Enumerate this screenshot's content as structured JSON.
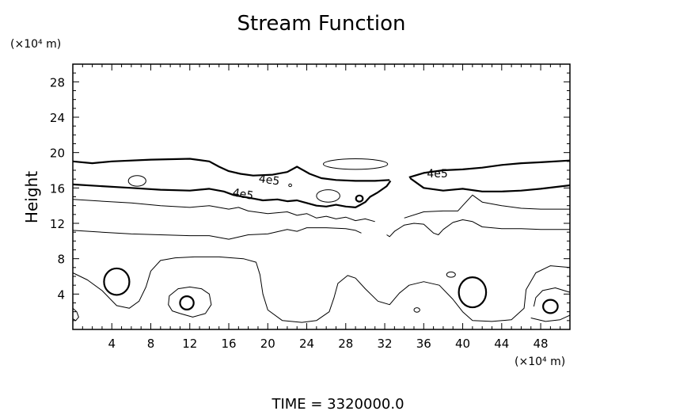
{
  "chart_data": {
    "type": "contour",
    "title": "Stream Function",
    "ylabel": "Height",
    "y_unit_label": "(×10⁴ m)",
    "x_unit_label": "(×10⁴ m)",
    "xlim": [
      0,
      51
    ],
    "ylim": [
      0,
      30
    ],
    "x_ticks": [
      4,
      8,
      12,
      16,
      20,
      24,
      28,
      32,
      36,
      40,
      44,
      48
    ],
    "y_ticks": [
      4,
      8,
      12,
      16,
      20,
      24,
      28
    ],
    "contour_labels": [
      "4e5",
      "4e5",
      "4e5"
    ],
    "footer": "TIME  =  3320000.0",
    "contours": [
      {
        "name": "upper-thick",
        "style": "thick",
        "points": [
          [
            0,
            19.0
          ],
          [
            2,
            18.8
          ],
          [
            4,
            19.0
          ],
          [
            8,
            19.2
          ],
          [
            12,
            19.3
          ],
          [
            14,
            19.0
          ],
          [
            15,
            18.4
          ],
          [
            16,
            17.9
          ],
          [
            17.2,
            17.6
          ],
          [
            18.5,
            17.4
          ],
          [
            20.5,
            17.5
          ],
          [
            22,
            17.8
          ],
          [
            23,
            18.4
          ],
          [
            24.3,
            17.6
          ],
          [
            25.5,
            17.1
          ],
          [
            27,
            16.9
          ],
          [
            29,
            16.8
          ],
          [
            31,
            16.8
          ],
          [
            32.5,
            16.9
          ]
        ]
      },
      {
        "name": "upper-thick-right",
        "style": "thick",
        "points": [
          [
            34.5,
            17.2
          ],
          [
            36,
            17.7
          ],
          [
            38,
            18.0
          ],
          [
            40,
            18.1
          ],
          [
            42,
            18.3
          ],
          [
            44,
            18.6
          ],
          [
            46,
            18.8
          ],
          [
            48,
            18.9
          ],
          [
            51,
            19.1
          ]
        ]
      },
      {
        "name": "middle-thick",
        "style": "thick",
        "points": [
          [
            0,
            16.4
          ],
          [
            3,
            16.2
          ],
          [
            6,
            16.0
          ],
          [
            9,
            15.8
          ],
          [
            12,
            15.7
          ],
          [
            14,
            15.9
          ],
          [
            15.5,
            15.6
          ],
          [
            16.5,
            15.2
          ],
          [
            17.5,
            15.0
          ],
          [
            18.5,
            14.8
          ],
          [
            19.5,
            14.6
          ],
          [
            21,
            14.7
          ],
          [
            22,
            14.5
          ],
          [
            23,
            14.6
          ],
          [
            25,
            14.0
          ],
          [
            26,
            13.9
          ],
          [
            27,
            14.1
          ],
          [
            28,
            13.9
          ],
          [
            29,
            13.8
          ],
          [
            29.5,
            14.1
          ],
          [
            30,
            14.4
          ],
          [
            30.5,
            15.0
          ],
          [
            31.3,
            15.5
          ],
          [
            32.2,
            16.2
          ],
          [
            32.6,
            16.8
          ]
        ]
      },
      {
        "name": "middle-thick-right",
        "style": "thick",
        "points": [
          [
            34.6,
            17.1
          ],
          [
            36,
            16.0
          ],
          [
            38,
            15.7
          ],
          [
            40,
            15.9
          ],
          [
            42,
            15.6
          ],
          [
            44,
            15.6
          ],
          [
            46,
            15.7
          ],
          [
            48,
            15.9
          ],
          [
            51,
            16.3
          ]
        ]
      },
      {
        "name": "thin-15",
        "style": "thin",
        "points": [
          [
            0,
            14.7
          ],
          [
            3,
            14.5
          ],
          [
            6,
            14.3
          ],
          [
            9,
            14.0
          ],
          [
            12,
            13.8
          ],
          [
            14,
            14.0
          ],
          [
            16,
            13.6
          ],
          [
            17,
            13.8
          ],
          [
            18,
            13.4
          ],
          [
            20,
            13.1
          ],
          [
            22,
            13.3
          ],
          [
            23,
            12.9
          ],
          [
            24,
            13.1
          ],
          [
            25,
            12.6
          ],
          [
            26,
            12.8
          ],
          [
            27,
            12.5
          ],
          [
            28,
            12.7
          ],
          [
            29,
            12.3
          ],
          [
            30,
            12.5
          ],
          [
            31,
            12.2
          ]
        ]
      },
      {
        "name": "thin-15-right",
        "style": "thin",
        "points": [
          [
            34,
            12.6
          ],
          [
            36,
            13.3
          ],
          [
            38,
            13.4
          ],
          [
            39.5,
            13.4
          ],
          [
            40,
            14.0
          ],
          [
            41,
            15.2
          ],
          [
            42,
            14.4
          ],
          [
            44,
            14.0
          ],
          [
            46,
            13.7
          ],
          [
            48,
            13.6
          ],
          [
            51,
            13.6
          ]
        ]
      },
      {
        "name": "thin-11",
        "style": "thin",
        "points": [
          [
            0,
            11.2
          ],
          [
            3,
            11.0
          ],
          [
            6,
            10.8
          ],
          [
            9,
            10.7
          ],
          [
            12,
            10.6
          ],
          [
            14,
            10.6
          ],
          [
            16,
            10.2
          ],
          [
            18,
            10.7
          ],
          [
            20,
            10.8
          ],
          [
            22,
            11.3
          ],
          [
            23,
            11.1
          ],
          [
            24,
            11.5
          ],
          [
            26,
            11.5
          ],
          [
            28,
            11.4
          ],
          [
            29,
            11.2
          ],
          [
            29.6,
            10.9
          ]
        ]
      },
      {
        "name": "thin-11-right",
        "style": "thin",
        "points": [
          [
            32.2,
            10.7
          ],
          [
            32.5,
            10.5
          ],
          [
            33,
            11.1
          ],
          [
            34,
            11.8
          ],
          [
            35,
            12.0
          ],
          [
            36,
            11.9
          ],
          [
            37,
            10.9
          ],
          [
            37.5,
            10.7
          ],
          [
            38,
            11.3
          ],
          [
            39,
            12.1
          ],
          [
            40,
            12.4
          ],
          [
            41,
            12.2
          ],
          [
            42,
            11.6
          ],
          [
            44,
            11.4
          ],
          [
            46,
            11.4
          ],
          [
            48,
            11.3
          ],
          [
            51,
            11.3
          ]
        ]
      },
      {
        "name": "wave-thin",
        "style": "thin",
        "points": [
          [
            0,
            6.4
          ],
          [
            1.5,
            5.6
          ],
          [
            3,
            4.4
          ],
          [
            4.5,
            2.7
          ],
          [
            5.8,
            2.4
          ],
          [
            6.8,
            3.2
          ],
          [
            7.5,
            4.8
          ],
          [
            8,
            6.6
          ],
          [
            9,
            7.8
          ],
          [
            10.5,
            8.1
          ],
          [
            12.5,
            8.2
          ],
          [
            15,
            8.2
          ],
          [
            17.5,
            8.0
          ],
          [
            18.8,
            7.6
          ],
          [
            19.2,
            6.2
          ],
          [
            19.5,
            4.0
          ],
          [
            20,
            2.2
          ],
          [
            21.5,
            1.0
          ],
          [
            23.5,
            0.8
          ],
          [
            25,
            1.0
          ],
          [
            26.3,
            2.0
          ],
          [
            26.8,
            3.6
          ],
          [
            27.2,
            5.2
          ],
          [
            28.2,
            6.1
          ],
          [
            29,
            5.8
          ],
          [
            30,
            4.6
          ],
          [
            31.3,
            3.2
          ],
          [
            32.5,
            2.8
          ],
          [
            33.5,
            4.1
          ],
          [
            34.5,
            5.0
          ],
          [
            36,
            5.4
          ],
          [
            37.6,
            5.0
          ],
          [
            39,
            3.4
          ],
          [
            40,
            2.0
          ],
          [
            41,
            1.0
          ],
          [
            43,
            0.9
          ],
          [
            45,
            1.1
          ],
          [
            46.3,
            2.4
          ],
          [
            46.5,
            4.5
          ],
          [
            47.5,
            6.4
          ],
          [
            49,
            7.2
          ],
          [
            51,
            7.0
          ]
        ]
      },
      {
        "name": "lower-loop-1",
        "style": "thin",
        "points": [
          [
            11,
            1.8
          ],
          [
            12.3,
            1.4
          ],
          [
            13.6,
            1.8
          ],
          [
            14.2,
            2.8
          ],
          [
            14,
            4.0
          ],
          [
            13.2,
            4.6
          ],
          [
            12,
            4.8
          ],
          [
            10.8,
            4.6
          ],
          [
            9.9,
            3.8
          ],
          [
            9.8,
            2.8
          ],
          [
            10.2,
            2.1
          ],
          [
            11,
            1.8
          ]
        ]
      },
      {
        "name": "lower-loop-2",
        "style": "thin",
        "points": [
          [
            0,
            2.4
          ],
          [
            0.4,
            2.0
          ],
          [
            0.6,
            1.4
          ],
          [
            0.3,
            1.0
          ],
          [
            0,
            1.2
          ]
        ]
      },
      {
        "name": "lower-loop-3",
        "style": "thin",
        "points": [
          [
            47,
            1.3
          ],
          [
            48.5,
            0.9
          ],
          [
            50,
            1.1
          ],
          [
            51,
            1.6
          ]
        ]
      },
      {
        "name": "lower-loop-4",
        "style": "thin",
        "points": [
          [
            51,
            4.2
          ],
          [
            49.5,
            4.7
          ],
          [
            48.2,
            4.4
          ],
          [
            47.5,
            3.6
          ],
          [
            47.3,
            2.6
          ]
        ]
      }
    ],
    "closed_contours": [
      {
        "name": "cell-a",
        "style": "thick",
        "cx": 4.5,
        "cy": 5.4,
        "rx": 1.3,
        "ry": 1.5
      },
      {
        "name": "cell-b",
        "style": "thick",
        "cx": 11.7,
        "cy": 3.0,
        "rx": 0.7,
        "ry": 0.75
      },
      {
        "name": "cell-c",
        "style": "thick",
        "cx": 41.0,
        "cy": 4.2,
        "rx": 1.4,
        "ry": 1.7
      },
      {
        "name": "cell-d",
        "style": "thick",
        "cx": 49.0,
        "cy": 2.6,
        "rx": 0.75,
        "ry": 0.75
      },
      {
        "name": "cell-e",
        "style": "thin",
        "cx": 6.6,
        "cy": 16.8,
        "rx": 0.9,
        "ry": 0.6
      },
      {
        "name": "cell-f",
        "style": "thin",
        "cx": 26.2,
        "cy": 15.1,
        "rx": 1.2,
        "ry": 0.7
      },
      {
        "name": "cell-g",
        "style": "thin",
        "cx": 29.0,
        "cy": 18.7,
        "rx": 3.3,
        "ry": 0.6
      },
      {
        "name": "cell-h",
        "style": "thin",
        "cx": 38.8,
        "cy": 6.2,
        "rx": 0.45,
        "ry": 0.3
      },
      {
        "name": "cell-i",
        "style": "thin",
        "cx": 35.3,
        "cy": 2.2,
        "rx": 0.3,
        "ry": 0.25
      },
      {
        "name": "cell-j",
        "style": "thick",
        "cx": 29.4,
        "cy": 14.8,
        "rx": 0.35,
        "ry": 0.35
      },
      {
        "name": "cell-k",
        "style": "thin",
        "cx": 22.3,
        "cy": 16.3,
        "rx": 0.15,
        "ry": 0.15
      }
    ]
  }
}
